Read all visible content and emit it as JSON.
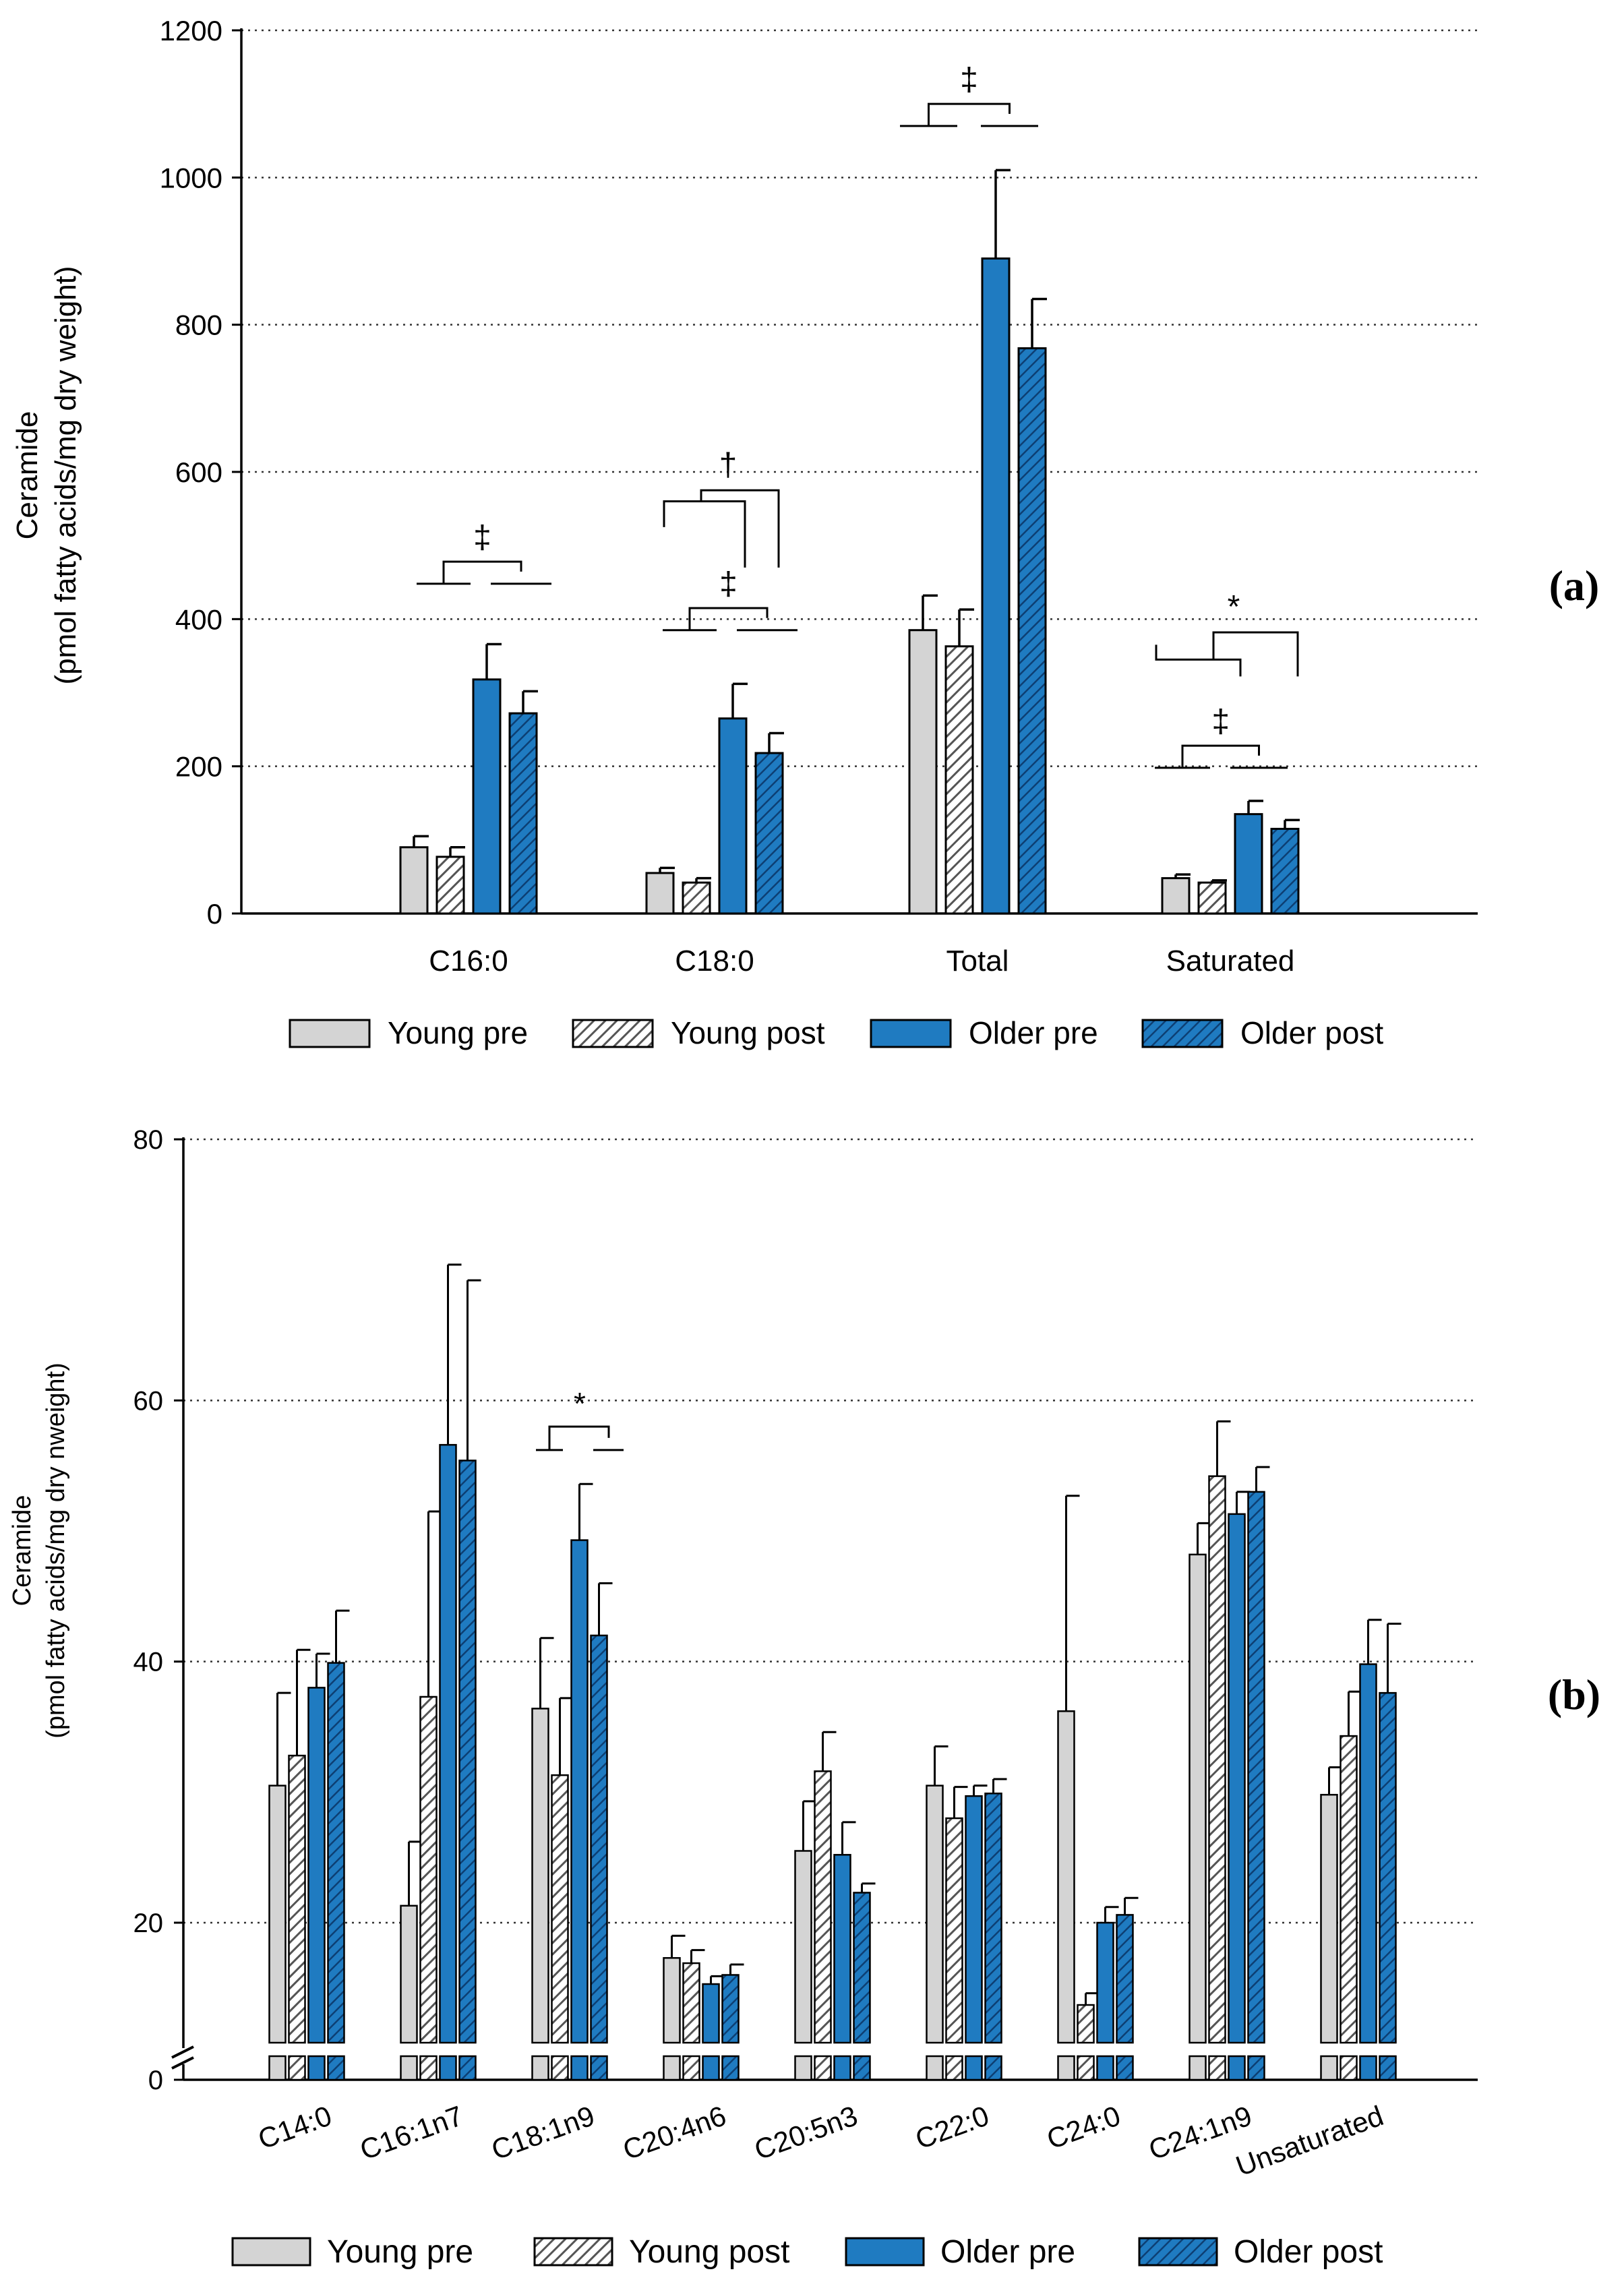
{
  "colors": {
    "young_pre": "#d4d4d4",
    "young_post_stroke": "#333333",
    "older_pre": "#1f7bc1",
    "older_post_stroke": "#0d3f73",
    "axis": "#000000",
    "grid": "#333333"
  },
  "legend": {
    "items": [
      "Young pre",
      "Young post",
      "Older pre",
      "Older post"
    ]
  },
  "chart_data": [
    {
      "type": "bar",
      "panel_label": "(a)",
      "ylabel_line1": "Ceramide",
      "ylabel_line2": "(pmol fatty acids/mg dry weight)",
      "ylim": [
        0,
        1200
      ],
      "yticks": [
        "0",
        "200",
        "400",
        "600",
        "800",
        "1000",
        "1200"
      ],
      "ytick_values": [
        0,
        200,
        400,
        600,
        800,
        1000,
        1200
      ],
      "grid": true,
      "categories": [
        "C16:0",
        "C18:0",
        "Total",
        "Saturated"
      ],
      "series": [
        {
          "name": "Young pre",
          "values": [
            90,
            55,
            385,
            48
          ],
          "errors": [
            15,
            7,
            47,
            5
          ]
        },
        {
          "name": "Young post",
          "values": [
            77,
            42,
            363,
            42
          ],
          "errors": [
            13,
            6,
            50,
            3
          ]
        },
        {
          "name": "Older pre",
          "values": [
            318,
            265,
            890,
            135
          ],
          "errors": [
            48,
            47,
            120,
            18
          ]
        },
        {
          "name": "Older post",
          "values": [
            272,
            218,
            768,
            115
          ],
          "errors": [
            30,
            27,
            67,
            12
          ]
        }
      ],
      "annotations": [
        {
          "symbol": "‡",
          "category": 0,
          "level": 448,
          "top": 478
        },
        {
          "symbol": "‡",
          "category": 1,
          "level": 385,
          "top": 415
        },
        {
          "symbol": "†",
          "category": 1,
          "level": 525,
          "top": 560
        },
        {
          "symbol": "‡",
          "category": 2,
          "level": 1070,
          "top": 1100
        },
        {
          "symbol": "‡",
          "category": 3,
          "level": 198,
          "top": 228
        },
        {
          "symbol": "*",
          "category": 3,
          "level": 345,
          "top": 382
        }
      ]
    },
    {
      "type": "bar",
      "panel_label": "(b)",
      "ylabel_line1": "Ceramide",
      "ylabel_line2": "(pmol fatty acids/mg dry nweight)",
      "ylim": [
        0,
        80
      ],
      "axis_break": true,
      "yticks": [
        "0",
        "20",
        "40",
        "60",
        "80"
      ],
      "ytick_values": [
        0,
        20,
        40,
        60,
        80
      ],
      "grid": true,
      "categories": [
        "C14:0",
        "C16:1n7",
        "C18:1n9",
        "C20:4n6",
        "C20:5n3",
        "C22:0",
        "C24:0",
        "C24:1n9",
        "Unsaturated"
      ],
      "series": [
        {
          "name": "Young pre",
          "values": [
            30.5,
            21.3,
            36.4,
            17.3,
            25.5,
            30.5,
            36.2,
            48.2,
            29.8
          ],
          "errors": [
            7.1,
            4.9,
            5.4,
            1.7,
            3.8,
            3.0,
            16.5,
            2.4,
            2.1
          ]
        },
        {
          "name": "Young post",
          "values": [
            32.8,
            37.3,
            31.3,
            16.9,
            31.6,
            28.0,
            13.7,
            54.2,
            34.3
          ],
          "errors": [
            8.1,
            14.2,
            5.9,
            1.0,
            3.0,
            2.4,
            0.9,
            4.2,
            3.4
          ]
        },
        {
          "name": "Older pre",
          "values": [
            38.0,
            56.6,
            49.3,
            15.3,
            25.2,
            29.7,
            20.0,
            51.3,
            39.8
          ],
          "errors": [
            2.6,
            13.8,
            4.3,
            0.6,
            2.5,
            0.8,
            1.2,
            1.7,
            3.4
          ]
        },
        {
          "name": "Older post",
          "values": [
            39.9,
            55.4,
            42.0,
            16.0,
            22.3,
            29.9,
            20.6,
            53.0,
            37.6
          ],
          "errors": [
            4.0,
            13.8,
            4.0,
            0.8,
            0.7,
            1.1,
            1.3,
            1.9,
            5.3
          ]
        }
      ],
      "annotations": [
        {
          "symbol": "*",
          "category": 2,
          "level": 56.2,
          "top": 58.0
        }
      ]
    }
  ]
}
